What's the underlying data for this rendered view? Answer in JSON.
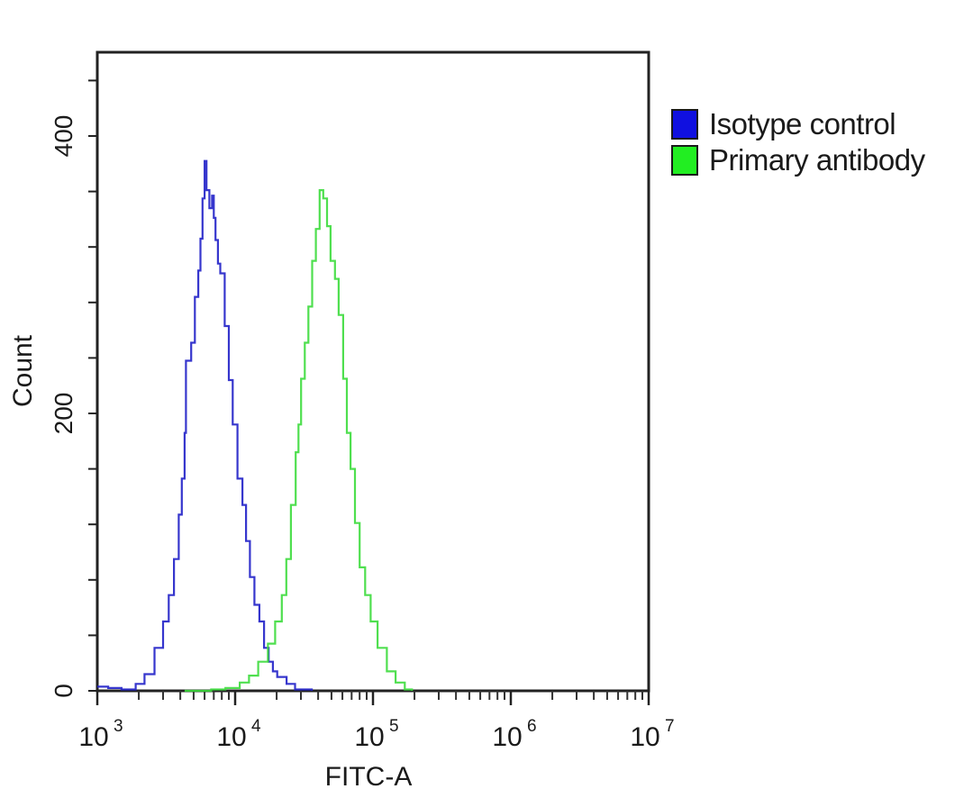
{
  "chart_data": {
    "type": "line",
    "title": "",
    "xlabel": "FITC-A",
    "ylabel": "Count",
    "xscale": "log",
    "xlim": [
      1000,
      10000000
    ],
    "ylim": [
      0,
      460
    ],
    "x_ticks": [
      {
        "value": 1000,
        "label_base": "10",
        "label_exp": "3"
      },
      {
        "value": 10000,
        "label_base": "10",
        "label_exp": "4"
      },
      {
        "value": 100000,
        "label_base": "10",
        "label_exp": "5"
      },
      {
        "value": 1000000,
        "label_base": "10",
        "label_exp": "6"
      },
      {
        "value": 10000000,
        "label_base": "10",
        "label_exp": "7"
      }
    ],
    "y_ticks": [
      {
        "value": 0,
        "label": "0"
      },
      {
        "value": 200,
        "label": "200"
      },
      {
        "value": 400,
        "label": "400"
      }
    ],
    "y_minor_step": 40,
    "grid": false,
    "legend_position": "right-outside-top",
    "series": [
      {
        "name": "Isotype control",
        "color": "#2020c8",
        "points": [
          [
            1000,
            3
          ],
          [
            1200,
            2
          ],
          [
            1500,
            1
          ],
          [
            1900,
            5
          ],
          [
            2200,
            12
          ],
          [
            2600,
            31
          ],
          [
            3000,
            50
          ],
          [
            3300,
            69
          ],
          [
            3600,
            95
          ],
          [
            3900,
            127
          ],
          [
            4100,
            153
          ],
          [
            4300,
            186
          ],
          [
            4400,
            238
          ],
          [
            4800,
            251
          ],
          [
            5100,
            284
          ],
          [
            5400,
            303
          ],
          [
            5600,
            326
          ],
          [
            5800,
            355
          ],
          [
            6000,
            382
          ],
          [
            6200,
            361
          ],
          [
            6500,
            348
          ],
          [
            6800,
            357
          ],
          [
            7000,
            341
          ],
          [
            7200,
            325
          ],
          [
            7500,
            308
          ],
          [
            7800,
            301
          ],
          [
            8400,
            263
          ],
          [
            9000,
            224
          ],
          [
            9600,
            192
          ],
          [
            10400,
            153
          ],
          [
            11300,
            134
          ],
          [
            12000,
            108
          ],
          [
            12800,
            82
          ],
          [
            13800,
            62
          ],
          [
            15000,
            50
          ],
          [
            16200,
            31
          ],
          [
            17500,
            21
          ],
          [
            18800,
            14
          ],
          [
            20200,
            10
          ],
          [
            23600,
            5
          ],
          [
            27200,
            1
          ],
          [
            36000,
            0
          ]
        ]
      },
      {
        "name": "Primary antibody",
        "color": "#3cdc3c",
        "points": [
          [
            4300,
            0
          ],
          [
            6700,
            1
          ],
          [
            8500,
            2
          ],
          [
            10800,
            6
          ],
          [
            12600,
            11
          ],
          [
            14700,
            21
          ],
          [
            17300,
            34
          ],
          [
            19500,
            50
          ],
          [
            21800,
            69
          ],
          [
            23500,
            95
          ],
          [
            25400,
            134
          ],
          [
            27500,
            172
          ],
          [
            28800,
            192
          ],
          [
            30100,
            225
          ],
          [
            32000,
            251
          ],
          [
            34000,
            277
          ],
          [
            36200,
            310
          ],
          [
            38500,
            333
          ],
          [
            41000,
            361
          ],
          [
            43600,
            355
          ],
          [
            46400,
            335
          ],
          [
            49200,
            310
          ],
          [
            53000,
            297
          ],
          [
            56400,
            271
          ],
          [
            60800,
            225
          ],
          [
            64600,
            186
          ],
          [
            68700,
            160
          ],
          [
            74000,
            121
          ],
          [
            80000,
            89
          ],
          [
            87700,
            69
          ],
          [
            96100,
            50
          ],
          [
            108000,
            31
          ],
          [
            126000,
            14
          ],
          [
            146000,
            6
          ],
          [
            170000,
            1
          ],
          [
            192000,
            0
          ]
        ]
      }
    ]
  },
  "axes": {
    "xlabel": "FITC-A",
    "ylabel": "Count"
  },
  "legend": {
    "items": [
      {
        "label": "Isotype control",
        "color": "#1010e0"
      },
      {
        "label": "Primary antibody",
        "color": "#22ee22"
      }
    ]
  }
}
